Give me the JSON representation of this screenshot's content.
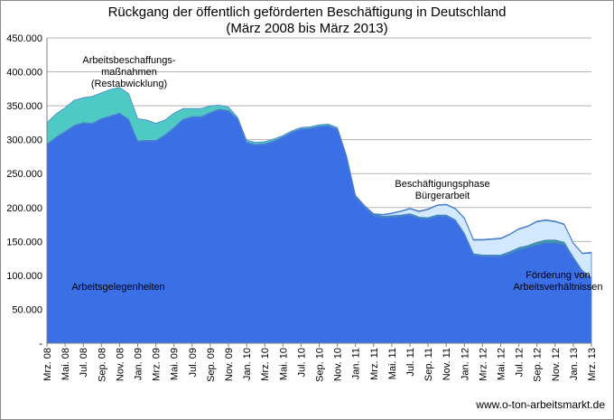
{
  "chart_data": {
    "type": "area",
    "stacked": true,
    "title": "Rückgang der öffentlich geförderten Beschäftigung in Deutschland",
    "subtitle": "(März 2008 bis März 2013)",
    "xlabel": "",
    "ylabel": "",
    "ylim": [
      0,
      450000
    ],
    "y_ticks": [
      0,
      50000,
      100000,
      150000,
      200000,
      250000,
      300000,
      350000,
      400000,
      450000
    ],
    "y_tick_labels": [
      "-",
      "50.000",
      "100.000",
      "150.000",
      "200.000",
      "250.000",
      "300.000",
      "350.000",
      "400.000",
      "450.000"
    ],
    "grid": true,
    "legend": "none",
    "x": [
      "Mrz. 08",
      "Apr. 08",
      "Mai. 08",
      "Jun. 08",
      "Jul. 08",
      "Aug. 08",
      "Sep. 08",
      "Okt. 08",
      "Nov. 08",
      "Dez. 08",
      "Jan. 09",
      "Feb. 09",
      "Mrz. 09",
      "Apr. 09",
      "Mai. 09",
      "Jun. 09",
      "Jul. 09",
      "Aug. 09",
      "Sep. 09",
      "Okt. 09",
      "Nov. 09",
      "Dez. 09",
      "Jan. 10",
      "Feb. 10",
      "Mrz. 10",
      "Apr. 10",
      "Mai. 10",
      "Jun. 10",
      "Jul. 10",
      "Aug. 10",
      "Sep. 10",
      "Okt. 10",
      "Nov. 10",
      "Dez. 10",
      "Jan. 11",
      "Feb. 11",
      "Mrz. 11",
      "Apr. 11",
      "Mai. 11",
      "Jun. 11",
      "Jul. 11",
      "Aug. 11",
      "Sep. 11",
      "Okt. 11",
      "Nov. 11",
      "Dez. 11",
      "Jan. 12",
      "Feb. 12",
      "Mrz. 12",
      "Apr. 12",
      "Mai. 12",
      "Jun. 12",
      "Jul. 12",
      "Aug. 12",
      "Sep. 12",
      "Okt. 12",
      "Nov. 12",
      "Dez. 12",
      "Jan. 13",
      "Feb. 13",
      "Mrz. 13"
    ],
    "x_tick_labels": [
      "Mrz. 08",
      "Mai. 08",
      "Jul. 08",
      "Sep. 08",
      "Nov. 08",
      "Jan. 09",
      "Mrz. 09",
      "Mai. 09",
      "Jul. 09",
      "Sep. 09",
      "Nov. 09",
      "Jan. 10",
      "Mrz. 10",
      "Mai. 10",
      "Jul. 10",
      "Sep. 10",
      "Nov. 10",
      "Jan. 11",
      "Mrz. 11",
      "Mai. 11",
      "Jul. 11",
      "Sep. 11",
      "Nov. 11",
      "Jan. 12",
      "Mrz. 12",
      "Mai. 12",
      "Jul. 12",
      "Sep. 12",
      "Nov. 12",
      "Jan. 13",
      "Mrz. 13"
    ],
    "series": [
      {
        "name": "Arbeitsgelegenheiten",
        "color": "#3a6fe6",
        "values": [
          292000,
          303000,
          311000,
          320000,
          324000,
          323000,
          330000,
          334000,
          338000,
          329000,
          297000,
          298000,
          298000,
          306000,
          317000,
          329000,
          333000,
          333000,
          339000,
          344000,
          342000,
          330000,
          295000,
          292000,
          293000,
          297000,
          303000,
          310000,
          315000,
          316000,
          319000,
          320000,
          315000,
          275000,
          215000,
          200000,
          188000,
          185000,
          186000,
          187000,
          189000,
          184000,
          183000,
          187000,
          187000,
          180000,
          160000,
          130000,
          128000,
          128000,
          128000,
          132000,
          138000,
          141000,
          145000,
          148000,
          148000,
          145000,
          125000,
          106000,
          96000
        ]
      },
      {
        "name": "Förderung von Arbeitsverhältnissen",
        "color": "#3a9c9c",
        "values": [
          1000,
          1000,
          1000,
          1000,
          1000,
          1000,
          1000,
          1000,
          1000,
          1000,
          1000,
          1000,
          1000,
          1000,
          1000,
          1000,
          1000,
          1000,
          1000,
          1000,
          1000,
          1000,
          1000,
          1000,
          1000,
          1000,
          1000,
          1000,
          1000,
          1000,
          1000,
          1000,
          1000,
          1000,
          2000,
          2000,
          2000,
          2000,
          2000,
          2000,
          2000,
          2000,
          2000,
          2000,
          2000,
          2000,
          2000,
          2000,
          2000,
          2000,
          2000,
          3000,
          3000,
          3000,
          4000,
          4000,
          4000,
          4000,
          2000,
          1000,
          1000
        ]
      },
      {
        "name": "Beschäftigungsphase Bürgerarbeit",
        "color": "#d2e9ff",
        "values": [
          0,
          0,
          0,
          0,
          0,
          0,
          0,
          0,
          0,
          0,
          0,
          0,
          0,
          0,
          0,
          0,
          0,
          0,
          0,
          0,
          0,
          0,
          0,
          0,
          0,
          0,
          0,
          0,
          0,
          0,
          0,
          0,
          0,
          0,
          0,
          0,
          0,
          2000,
          3000,
          5000,
          7000,
          8000,
          12000,
          14000,
          15000,
          16000,
          22000,
          20000,
          22000,
          23000,
          24000,
          25000,
          27000,
          28000,
          30000,
          29000,
          27000,
          26000,
          20000,
          25000,
          36000
        ]
      },
      {
        "name": "Arbeitsbeschaffungsmaßnahmen (Restabwicklung)",
        "color": "#4ec9c3",
        "values": [
          32000,
          34000,
          35000,
          37000,
          37000,
          40000,
          38000,
          39000,
          38000,
          38000,
          33000,
          30000,
          25000,
          22000,
          21000,
          16000,
          12000,
          12000,
          10000,
          6000,
          5000,
          2000,
          3000,
          3000,
          3000,
          3000,
          2000,
          2000,
          2000,
          2000,
          2000,
          2000,
          2000,
          1000,
          1000,
          1000,
          1000,
          1000,
          1000,
          1000,
          1000,
          1000,
          1000,
          1000,
          1000,
          1000,
          1000,
          1000,
          1000,
          1000,
          1000,
          1000,
          1000,
          1000,
          1000,
          1000,
          1000,
          1000,
          1000,
          1000,
          1000
        ]
      }
    ],
    "annotations": {
      "abm": [
        "Arbeitsbeschaffungs-",
        "maßnahmen",
        "(Restabwicklung)"
      ],
      "buerger": [
        "Beschäftigungsphase",
        "Bürgerarbeit"
      ],
      "agh": [
        "Arbeitsgelegenheiten"
      ],
      "foerderung": [
        "Förderung von",
        "Arbeitsverhältnissen"
      ]
    }
  },
  "source": "www.o-ton-arbeitsmarkt.de"
}
